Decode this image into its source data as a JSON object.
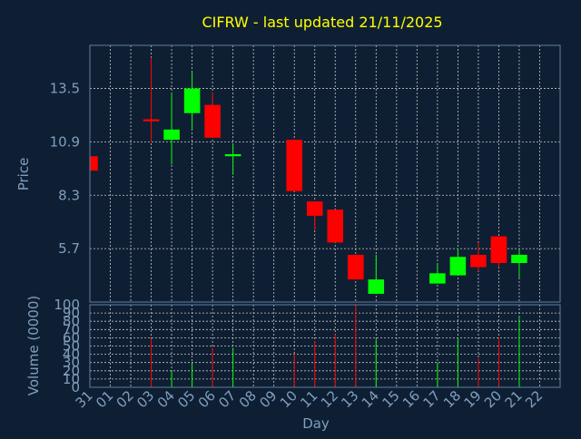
{
  "chart_data": {
    "type": "candlestick",
    "title": "CIFRW - last updated 21/11/2025",
    "xlabel": "Day",
    "ylabel_price": "Price",
    "ylabel_volume": "Volume (0000)",
    "x_ticks": [
      "31",
      "01",
      "02",
      "03",
      "04",
      "05",
      "06",
      "07",
      "08",
      "09",
      "10",
      "11",
      "12",
      "13",
      "14",
      "15",
      "16",
      "17",
      "18",
      "19",
      "20",
      "21",
      "22"
    ],
    "price_ticks": [
      5.7,
      8.3,
      10.9,
      13.5
    ],
    "price_tick_labels": [
      "5.7",
      "8.3",
      "10.9",
      "13.5"
    ],
    "price_range": [
      3.1,
      15.6
    ],
    "volume_ticks": [
      0,
      10,
      20,
      30,
      40,
      50,
      60,
      70,
      80,
      90,
      100
    ],
    "volume_range": [
      0,
      100
    ],
    "grid": true,
    "colors": {
      "background": "#0f1f33",
      "up": "#00ff00",
      "down": "#ff0000",
      "grid": "#c8c8c8",
      "title": "#ffff00",
      "axis_text": "#7f9fbf"
    },
    "candles": [
      {
        "day": "31",
        "open": 10.2,
        "close": 9.5,
        "high": 10.2,
        "low": 9.5,
        "volume": 0
      },
      {
        "day": "03",
        "open": 12.0,
        "close": 11.9,
        "high": 15.0,
        "low": 10.9,
        "volume": 59
      },
      {
        "day": "04",
        "open": 11.0,
        "close": 11.5,
        "high": 13.3,
        "low": 9.8,
        "volume": 20
      },
      {
        "day": "05",
        "open": 12.3,
        "close": 13.5,
        "high": 14.3,
        "low": 11.5,
        "volume": 28
      },
      {
        "day": "06",
        "open": 12.7,
        "close": 11.1,
        "high": 13.3,
        "low": 11.1,
        "volume": 48
      },
      {
        "day": "07",
        "open": 10.2,
        "close": 10.3,
        "high": 10.8,
        "low": 9.3,
        "volume": 48
      },
      {
        "day": "10",
        "open": 11.0,
        "close": 8.5,
        "high": 11.0,
        "low": 8.5,
        "volume": 40
      },
      {
        "day": "11",
        "open": 8.0,
        "close": 7.3,
        "high": 8.0,
        "low": 6.6,
        "volume": 56
      },
      {
        "day": "12",
        "open": 7.6,
        "close": 6.0,
        "high": 7.6,
        "low": 6.0,
        "volume": 64
      },
      {
        "day": "13",
        "open": 5.4,
        "close": 4.2,
        "high": 5.4,
        "low": 4.2,
        "volume": 100
      },
      {
        "day": "14",
        "open": 3.5,
        "close": 4.2,
        "high": 5.4,
        "low": 3.5,
        "volume": 58
      },
      {
        "day": "17",
        "open": 4.0,
        "close": 4.5,
        "high": 5.0,
        "low": 4.0,
        "volume": 30
      },
      {
        "day": "18",
        "open": 4.4,
        "close": 5.3,
        "high": 5.7,
        "low": 4.4,
        "volume": 60
      },
      {
        "day": "19",
        "open": 5.4,
        "close": 4.8,
        "high": 6.0,
        "low": 4.6,
        "volume": 35
      },
      {
        "day": "20",
        "open": 6.3,
        "close": 5.0,
        "high": 6.3,
        "low": 4.8,
        "volume": 60
      },
      {
        "day": "21",
        "open": 5.0,
        "close": 5.4,
        "high": 5.7,
        "low": 4.3,
        "volume": 85
      }
    ]
  }
}
